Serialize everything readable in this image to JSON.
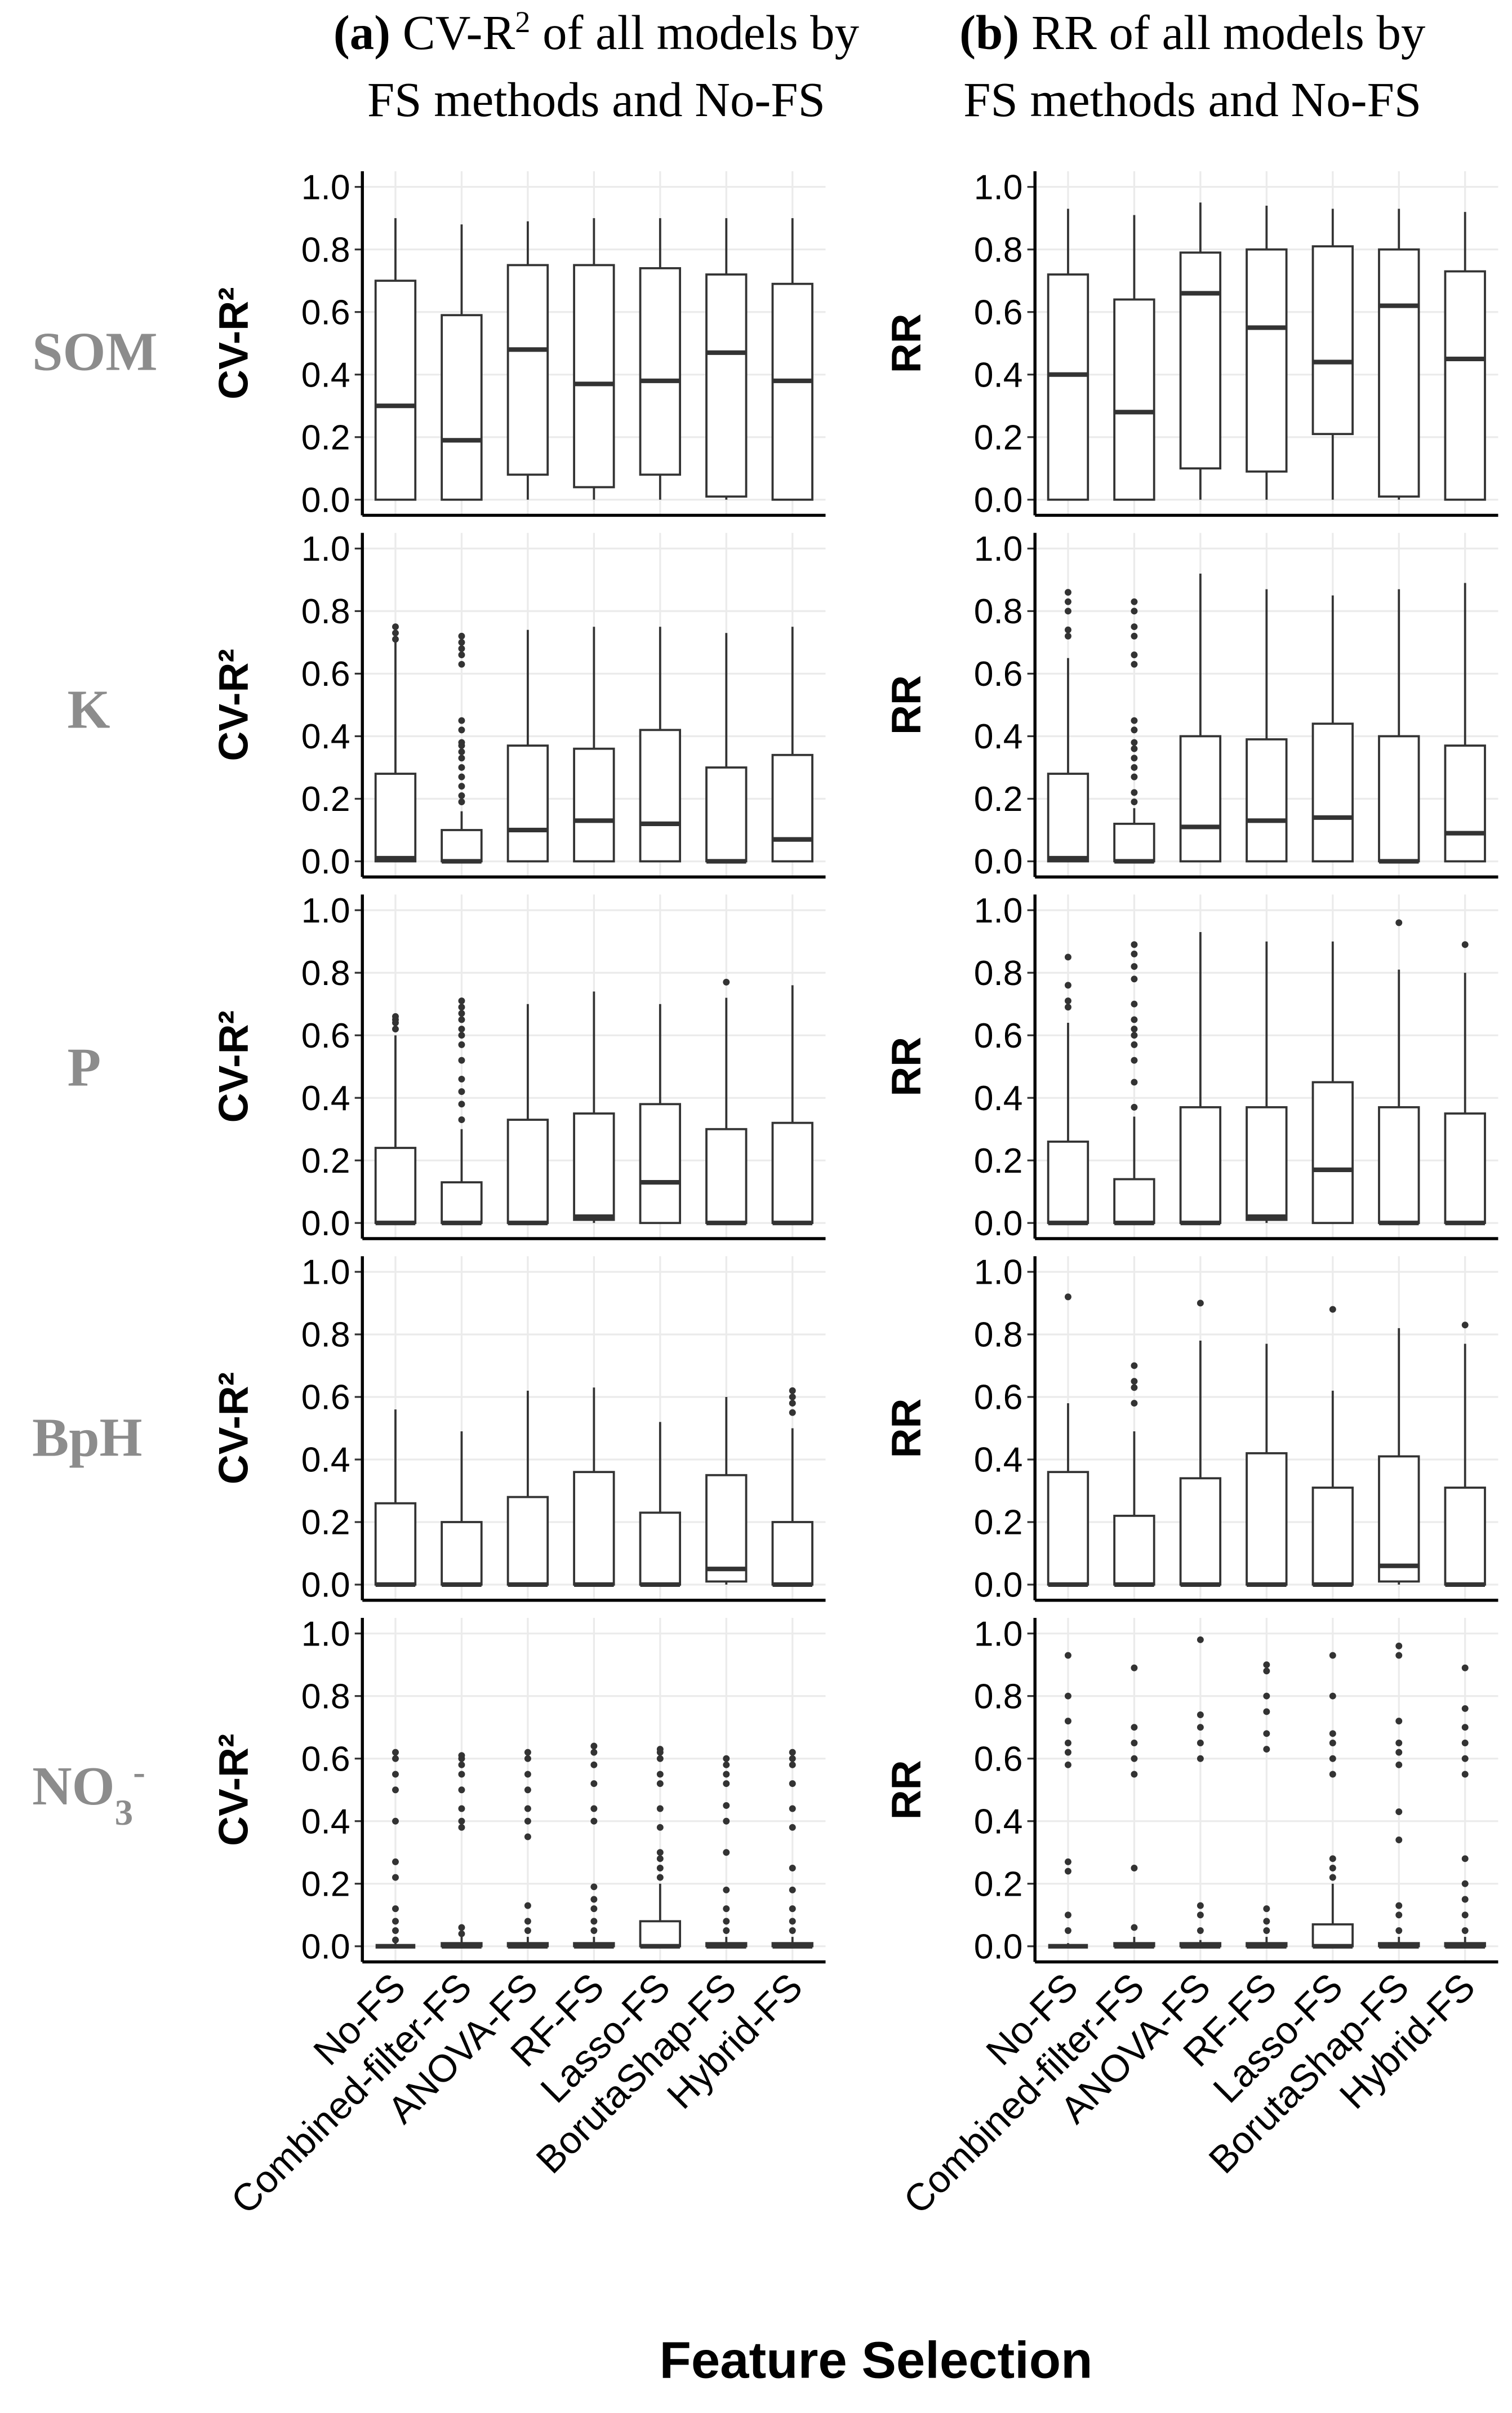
{
  "column_titles": [
    {
      "label": "(a)",
      "text": "CV-R",
      "sup": "2",
      "rest": " of all models by",
      "line2": "FS methods and No-FS"
    },
    {
      "label": "(b)",
      "text": "RR of all models by",
      "line2": "FS methods and No-FS"
    }
  ],
  "row_labels": [
    "SOM",
    "K",
    "P",
    "BpH",
    {
      "text": "NO",
      "sub": "3",
      "sup": "-"
    }
  ],
  "x_axis_title": "Feature Selection",
  "chart_data": [
    {
      "type": "box",
      "y_label": "CV-R²",
      "color": "#333333",
      "grid": true,
      "ylim": [
        -0.05,
        1.05
      ],
      "yticks": [
        {
          "value": 0,
          "label": "0.0"
        },
        0.2,
        0.4,
        0.6,
        0.8,
        {
          "value": 1,
          "label": "1.0"
        }
      ],
      "boxes": [
        {
          "min": 0,
          "q1": 0,
          "median": 0.3,
          "q3": 0.7,
          "max": 0.9,
          "outliers": []
        },
        {
          "min": 0,
          "q1": 0,
          "median": 0.19,
          "q3": 0.59,
          "max": 0.88,
          "outliers": []
        },
        {
          "min": 0,
          "q1": 0.08,
          "median": 0.48,
          "q3": 0.75,
          "max": 0.89,
          "outliers": []
        },
        {
          "min": 0,
          "q1": 0.04,
          "median": 0.37,
          "q3": 0.75,
          "max": 0.9,
          "outliers": []
        },
        {
          "min": 0,
          "q1": 0.08,
          "median": 0.38,
          "q3": 0.74,
          "max": 0.9,
          "outliers": []
        },
        {
          "min": 0,
          "q1": 0.01,
          "median": 0.47,
          "q3": 0.72,
          "max": 0.9,
          "outliers": []
        },
        {
          "min": 0,
          "q1": 0,
          "median": 0.38,
          "q3": 0.69,
          "max": 0.9,
          "outliers": []
        }
      ]
    },
    {
      "type": "box",
      "y_label": "RR",
      "color": "#333333",
      "grid": true,
      "ylim": [
        -0.05,
        1.05
      ],
      "yticks": [
        {
          "value": 0,
          "label": "0.0"
        },
        0.2,
        0.4,
        0.6,
        0.8,
        {
          "value": 1,
          "label": "1.0"
        }
      ],
      "boxes": [
        {
          "min": 0,
          "q1": 0,
          "median": 0.4,
          "q3": 0.72,
          "max": 0.93,
          "outliers": []
        },
        {
          "min": 0,
          "q1": 0,
          "median": 0.28,
          "q3": 0.64,
          "max": 0.91,
          "outliers": []
        },
        {
          "min": 0,
          "q1": 0.1,
          "median": 0.66,
          "q3": 0.79,
          "max": 0.95,
          "outliers": []
        },
        {
          "min": 0,
          "q1": 0.09,
          "median": 0.55,
          "q3": 0.8,
          "max": 0.94,
          "outliers": []
        },
        {
          "min": 0,
          "q1": 0.21,
          "median": 0.44,
          "q3": 0.81,
          "max": 0.93,
          "outliers": []
        },
        {
          "min": 0,
          "q1": 0.01,
          "median": 0.62,
          "q3": 0.8,
          "max": 0.93,
          "outliers": []
        },
        {
          "min": 0,
          "q1": 0,
          "median": 0.45,
          "q3": 0.73,
          "max": 0.92,
          "outliers": []
        }
      ]
    },
    {
      "type": "box",
      "y_label": "CV-R²",
      "color": "#333333",
      "grid": true,
      "ylim": [
        -0.05,
        1.05
      ],
      "yticks": [
        {
          "value": 0,
          "label": "0.0"
        },
        0.2,
        0.4,
        0.6,
        0.8,
        {
          "value": 1,
          "label": "1.0"
        }
      ],
      "boxes": [
        {
          "min": 0,
          "q1": 0,
          "median": 0.01,
          "q3": 0.28,
          "max": 0.7,
          "outliers": [
            0.71,
            0.73,
            0.75
          ]
        },
        {
          "min": 0,
          "q1": 0,
          "median": 0,
          "q3": 0.1,
          "max": 0.16,
          "outliers": [
            0.19,
            0.21,
            0.24,
            0.27,
            0.3,
            0.33,
            0.35,
            0.37,
            0.38,
            0.42,
            0.45,
            0.63,
            0.66,
            0.68,
            0.7,
            0.72
          ]
        },
        {
          "min": 0,
          "q1": 0,
          "median": 0.1,
          "q3": 0.37,
          "max": 0.74,
          "outliers": []
        },
        {
          "min": 0,
          "q1": 0,
          "median": 0.13,
          "q3": 0.36,
          "max": 0.75,
          "outliers": []
        },
        {
          "min": 0,
          "q1": 0,
          "median": 0.12,
          "q3": 0.42,
          "max": 0.75,
          "outliers": []
        },
        {
          "min": 0,
          "q1": 0,
          "median": 0,
          "q3": 0.3,
          "max": 0.73,
          "outliers": []
        },
        {
          "min": 0,
          "q1": 0,
          "median": 0.07,
          "q3": 0.34,
          "max": 0.75,
          "outliers": []
        }
      ]
    },
    {
      "type": "box",
      "y_label": "RR",
      "color": "#333333",
      "grid": true,
      "ylim": [
        -0.05,
        1.05
      ],
      "yticks": [
        {
          "value": 0,
          "label": "0.0"
        },
        0.2,
        0.4,
        0.6,
        0.8,
        {
          "value": 1,
          "label": "1.0"
        }
      ],
      "boxes": [
        {
          "min": 0,
          "q1": 0,
          "median": 0.01,
          "q3": 0.28,
          "max": 0.65,
          "outliers": [
            0.72,
            0.74,
            0.8,
            0.83,
            0.86
          ]
        },
        {
          "min": 0,
          "q1": 0,
          "median": 0,
          "q3": 0.12,
          "max": 0.17,
          "outliers": [
            0.19,
            0.22,
            0.27,
            0.3,
            0.33,
            0.36,
            0.38,
            0.42,
            0.45,
            0.63,
            0.66,
            0.72,
            0.75,
            0.8,
            0.83
          ]
        },
        {
          "min": 0,
          "q1": 0,
          "median": 0.11,
          "q3": 0.4,
          "max": 0.92,
          "outliers": []
        },
        {
          "min": 0,
          "q1": 0,
          "median": 0.13,
          "q3": 0.39,
          "max": 0.87,
          "outliers": []
        },
        {
          "min": 0,
          "q1": 0,
          "median": 0.14,
          "q3": 0.44,
          "max": 0.85,
          "outliers": []
        },
        {
          "min": 0,
          "q1": 0,
          "median": 0,
          "q3": 0.4,
          "max": 0.87,
          "outliers": []
        },
        {
          "min": 0,
          "q1": 0,
          "median": 0.09,
          "q3": 0.37,
          "max": 0.89,
          "outliers": []
        }
      ]
    },
    {
      "type": "box",
      "y_label": "CV-R²",
      "color": "#333333",
      "grid": true,
      "ylim": [
        -0.05,
        1.05
      ],
      "yticks": [
        {
          "value": 0,
          "label": "0.0"
        },
        0.2,
        0.4,
        0.6,
        0.8,
        {
          "value": 1,
          "label": "1.0"
        }
      ],
      "boxes": [
        {
          "min": 0,
          "q1": 0,
          "median": 0,
          "q3": 0.24,
          "max": 0.6,
          "outliers": [
            0.62,
            0.64,
            0.65,
            0.66
          ]
        },
        {
          "min": 0,
          "q1": 0,
          "median": 0,
          "q3": 0.13,
          "max": 0.3,
          "outliers": [
            0.33,
            0.38,
            0.42,
            0.46,
            0.52,
            0.57,
            0.6,
            0.62,
            0.65,
            0.67,
            0.69,
            0.71
          ]
        },
        {
          "min": 0,
          "q1": 0,
          "median": 0,
          "q3": 0.33,
          "max": 0.7,
          "outliers": []
        },
        {
          "min": 0,
          "q1": 0.01,
          "median": 0.02,
          "q3": 0.35,
          "max": 0.74,
          "outliers": []
        },
        {
          "min": 0,
          "q1": 0,
          "median": 0.13,
          "q3": 0.38,
          "max": 0.7,
          "outliers": []
        },
        {
          "min": 0,
          "q1": 0,
          "median": 0,
          "q3": 0.3,
          "max": 0.72,
          "outliers": [
            0.77
          ]
        },
        {
          "min": 0,
          "q1": 0,
          "median": 0,
          "q3": 0.32,
          "max": 0.76,
          "outliers": []
        }
      ]
    },
    {
      "type": "box",
      "y_label": "RR",
      "color": "#333333",
      "grid": true,
      "ylim": [
        -0.05,
        1.05
      ],
      "yticks": [
        {
          "value": 0,
          "label": "0.0"
        },
        0.2,
        0.4,
        0.6,
        0.8,
        {
          "value": 1,
          "label": "1.0"
        }
      ],
      "boxes": [
        {
          "min": 0,
          "q1": 0,
          "median": 0,
          "q3": 0.26,
          "max": 0.64,
          "outliers": [
            0.69,
            0.71,
            0.76,
            0.85
          ]
        },
        {
          "min": 0,
          "q1": 0,
          "median": 0,
          "q3": 0.14,
          "max": 0.34,
          "outliers": [
            0.37,
            0.45,
            0.52,
            0.57,
            0.6,
            0.62,
            0.65,
            0.7,
            0.78,
            0.82,
            0.86,
            0.89
          ]
        },
        {
          "min": 0,
          "q1": 0,
          "median": 0,
          "q3": 0.37,
          "max": 0.93,
          "outliers": []
        },
        {
          "min": 0,
          "q1": 0.01,
          "median": 0.02,
          "q3": 0.37,
          "max": 0.9,
          "outliers": []
        },
        {
          "min": 0,
          "q1": 0,
          "median": 0.17,
          "q3": 0.45,
          "max": 0.9,
          "outliers": []
        },
        {
          "min": 0,
          "q1": 0,
          "median": 0,
          "q3": 0.37,
          "max": 0.81,
          "outliers": [
            0.96
          ]
        },
        {
          "min": 0,
          "q1": 0,
          "median": 0,
          "q3": 0.35,
          "max": 0.8,
          "outliers": [
            0.89
          ]
        }
      ]
    },
    {
      "type": "box",
      "y_label": "CV-R²",
      "color": "#333333",
      "grid": true,
      "ylim": [
        -0.05,
        1.05
      ],
      "yticks": [
        {
          "value": 0,
          "label": "0.0"
        },
        0.2,
        0.4,
        0.6,
        0.8,
        {
          "value": 1,
          "label": "1.0"
        }
      ],
      "boxes": [
        {
          "min": 0,
          "q1": 0,
          "median": 0,
          "q3": 0.26,
          "max": 0.56,
          "outliers": []
        },
        {
          "min": 0,
          "q1": 0,
          "median": 0,
          "q3": 0.2,
          "max": 0.49,
          "outliers": []
        },
        {
          "min": 0,
          "q1": 0,
          "median": 0,
          "q3": 0.28,
          "max": 0.62,
          "outliers": []
        },
        {
          "min": 0,
          "q1": 0,
          "median": 0,
          "q3": 0.36,
          "max": 0.63,
          "outliers": []
        },
        {
          "min": 0,
          "q1": 0,
          "median": 0,
          "q3": 0.23,
          "max": 0.52,
          "outliers": []
        },
        {
          "min": 0,
          "q1": 0.01,
          "median": 0.05,
          "q3": 0.35,
          "max": 0.6,
          "outliers": []
        },
        {
          "min": 0,
          "q1": 0,
          "median": 0,
          "q3": 0.2,
          "max": 0.5,
          "outliers": [
            0.55,
            0.58,
            0.6,
            0.62
          ]
        }
      ]
    },
    {
      "type": "box",
      "y_label": "RR",
      "color": "#333333",
      "grid": true,
      "ylim": [
        -0.05,
        1.05
      ],
      "yticks": [
        {
          "value": 0,
          "label": "0.0"
        },
        0.2,
        0.4,
        0.6,
        0.8,
        {
          "value": 1,
          "label": "1.0"
        }
      ],
      "boxes": [
        {
          "min": 0,
          "q1": 0,
          "median": 0,
          "q3": 0.36,
          "max": 0.58,
          "outliers": [
            0.92
          ]
        },
        {
          "min": 0,
          "q1": 0,
          "median": 0,
          "q3": 0.22,
          "max": 0.49,
          "outliers": [
            0.58,
            0.63,
            0.65,
            0.7
          ]
        },
        {
          "min": 0,
          "q1": 0,
          "median": 0,
          "q3": 0.34,
          "max": 0.78,
          "outliers": [
            0.9
          ]
        },
        {
          "min": 0,
          "q1": 0,
          "median": 0,
          "q3": 0.42,
          "max": 0.77,
          "outliers": []
        },
        {
          "min": 0,
          "q1": 0,
          "median": 0,
          "q3": 0.31,
          "max": 0.62,
          "outliers": [
            0.88
          ]
        },
        {
          "min": 0,
          "q1": 0.01,
          "median": 0.06,
          "q3": 0.41,
          "max": 0.82,
          "outliers": []
        },
        {
          "min": 0,
          "q1": 0,
          "median": 0,
          "q3": 0.31,
          "max": 0.77,
          "outliers": [
            0.83
          ]
        }
      ]
    },
    {
      "type": "box",
      "y_label": "CV-R²",
      "color": "#333333",
      "grid": true,
      "ylim": [
        -0.05,
        1.05
      ],
      "yticks": [
        {
          "value": 0,
          "label": "0.0"
        },
        0.2,
        0.4,
        0.6,
        0.8,
        {
          "value": 1,
          "label": "1.0"
        }
      ],
      "categories": [
        "No-FS",
        "Combined-filter-FS",
        "ANOVA-FS",
        "RF-FS",
        "Lasso-FS",
        "BorutaShap-FS",
        "Hybrid-FS"
      ],
      "boxes": [
        {
          "min": 0,
          "q1": 0,
          "median": 0,
          "q3": 0,
          "max": 0.01,
          "outliers": [
            0.02,
            0.05,
            0.08,
            0.12,
            0.22,
            0.27,
            0.4,
            0.5,
            0.55,
            0.6,
            0.62
          ]
        },
        {
          "min": 0,
          "q1": 0,
          "median": 0,
          "q3": 0.01,
          "max": 0.03,
          "outliers": [
            0.04,
            0.06,
            0.38,
            0.4,
            0.44,
            0.5,
            0.55,
            0.58,
            0.6,
            0.61
          ]
        },
        {
          "min": 0,
          "q1": 0,
          "median": 0,
          "q3": 0.01,
          "max": 0.03,
          "outliers": [
            0.05,
            0.08,
            0.13,
            0.35,
            0.4,
            0.44,
            0.5,
            0.55,
            0.6,
            0.62
          ]
        },
        {
          "min": 0,
          "q1": 0,
          "median": 0,
          "q3": 0.01,
          "max": 0.03,
          "outliers": [
            0.05,
            0.08,
            0.12,
            0.15,
            0.19,
            0.4,
            0.44,
            0.52,
            0.58,
            0.62,
            0.64
          ]
        },
        {
          "min": 0,
          "q1": 0,
          "median": 0,
          "q3": 0.08,
          "max": 0.2,
          "outliers": [
            0.22,
            0.25,
            0.28,
            0.3,
            0.38,
            0.44,
            0.52,
            0.55,
            0.6,
            0.62,
            0.63
          ]
        },
        {
          "min": 0,
          "q1": 0,
          "median": 0,
          "q3": 0.01,
          "max": 0.03,
          "outliers": [
            0.05,
            0.08,
            0.12,
            0.18,
            0.3,
            0.4,
            0.45,
            0.52,
            0.55,
            0.58,
            0.6
          ]
        },
        {
          "min": 0,
          "q1": 0,
          "median": 0,
          "q3": 0.01,
          "max": 0.03,
          "outliers": [
            0.05,
            0.08,
            0.12,
            0.18,
            0.25,
            0.38,
            0.44,
            0.52,
            0.58,
            0.6,
            0.62
          ]
        }
      ]
    },
    {
      "type": "box",
      "y_label": "RR",
      "color": "#333333",
      "grid": true,
      "ylim": [
        -0.05,
        1.05
      ],
      "yticks": [
        {
          "value": 0,
          "label": "0.0"
        },
        0.2,
        0.4,
        0.6,
        0.8,
        {
          "value": 1,
          "label": "1.0"
        }
      ],
      "categories": [
        "No-FS",
        "Combined-filter-FS",
        "ANOVA-FS",
        "RF-FS",
        "Lasso-FS",
        "BorutaShap-FS",
        "Hybrid-FS"
      ],
      "boxes": [
        {
          "min": 0,
          "q1": 0,
          "median": 0,
          "q3": 0,
          "max": 0.01,
          "outliers": [
            0.05,
            0.1,
            0.24,
            0.27,
            0.58,
            0.62,
            0.65,
            0.72,
            0.8,
            0.93
          ]
        },
        {
          "min": 0,
          "q1": 0,
          "median": 0,
          "q3": 0.01,
          "max": 0.03,
          "outliers": [
            0.06,
            0.25,
            0.55,
            0.6,
            0.65,
            0.7,
            0.89
          ]
        },
        {
          "min": 0,
          "q1": 0,
          "median": 0,
          "q3": 0.01,
          "max": 0.02,
          "outliers": [
            0.05,
            0.1,
            0.13,
            0.6,
            0.65,
            0.7,
            0.74,
            0.98
          ]
        },
        {
          "min": 0,
          "q1": 0,
          "median": 0,
          "q3": 0.01,
          "max": 0.03,
          "outliers": [
            0.05,
            0.08,
            0.12,
            0.63,
            0.68,
            0.75,
            0.8,
            0.88,
            0.9
          ]
        },
        {
          "min": 0,
          "q1": 0,
          "median": 0,
          "q3": 0.07,
          "max": 0.2,
          "outliers": [
            0.22,
            0.25,
            0.28,
            0.55,
            0.6,
            0.65,
            0.68,
            0.8,
            0.93
          ]
        },
        {
          "min": 0,
          "q1": 0,
          "median": 0,
          "q3": 0.01,
          "max": 0.03,
          "outliers": [
            0.05,
            0.1,
            0.13,
            0.34,
            0.43,
            0.58,
            0.62,
            0.65,
            0.72,
            0.93,
            0.96
          ]
        },
        {
          "min": 0,
          "q1": 0,
          "median": 0,
          "q3": 0.01,
          "max": 0.03,
          "outliers": [
            0.05,
            0.1,
            0.15,
            0.2,
            0.28,
            0.55,
            0.6,
            0.65,
            0.7,
            0.76,
            0.89
          ]
        }
      ]
    }
  ]
}
